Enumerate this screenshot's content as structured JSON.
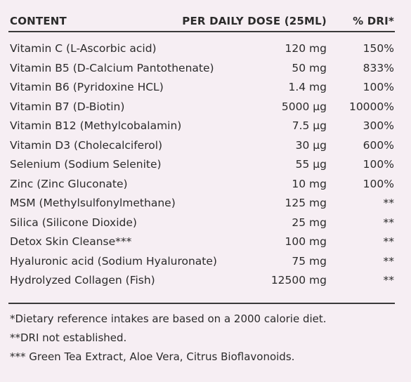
{
  "table": {
    "headers": {
      "content": "CONTENT",
      "dose": "PER DAILY DOSE (25ML)",
      "dri": "% DRI*"
    },
    "rows": [
      {
        "name": "Vitamin C (L-Ascorbic acid)",
        "dose": "120 mg",
        "dri": "150%"
      },
      {
        "name": "Vitamin B5 (D-Calcium Pantothenate)",
        "dose": "50 mg",
        "dri": "833%"
      },
      {
        "name": "Vitamin B6 (Pyridoxine HCL)",
        "dose": "1.4 mg",
        "dri": "100%"
      },
      {
        "name": "Vitamin B7 (D-Biotin)",
        "dose": "5000 µg",
        "dri": "10000%"
      },
      {
        "name": "Vitamin B12 (Methylcobalamin)",
        "dose": "7.5 µg",
        "dri": "300%"
      },
      {
        "name": "Vitamin D3 (Cholecalciferol)",
        "dose": "30 µg",
        "dri": "600%"
      },
      {
        "name": "Selenium (Sodium Selenite)",
        "dose": "55 µg",
        "dri": "100%"
      },
      {
        "name": "Zinc (Zinc Gluconate)",
        "dose": "10 mg",
        "dri": "100%"
      },
      {
        "name": "MSM (Methylsulfonylmethane)",
        "dose": "125 mg",
        "dri": "**"
      },
      {
        "name": "Silica (Silicone Dioxide)",
        "dose": "25 mg",
        "dri": "**"
      },
      {
        "name": "Detox Skin Cleanse***",
        "dose": "100 mg",
        "dri": "**"
      },
      {
        "name": "Hyaluronic acid (Sodium Hyaluronate)",
        "dose": "75 mg",
        "dri": "**"
      },
      {
        "name": "Hydrolyzed Collagen (Fish)",
        "dose": "12500 mg",
        "dri": "**"
      }
    ]
  },
  "footnotes": [
    "*Dietary reference intakes are based on a 2000 calorie diet.",
    "**DRI not established.",
    "*** Green Tea Extract, Aloe Vera, Citrus Bioflavonoids."
  ]
}
